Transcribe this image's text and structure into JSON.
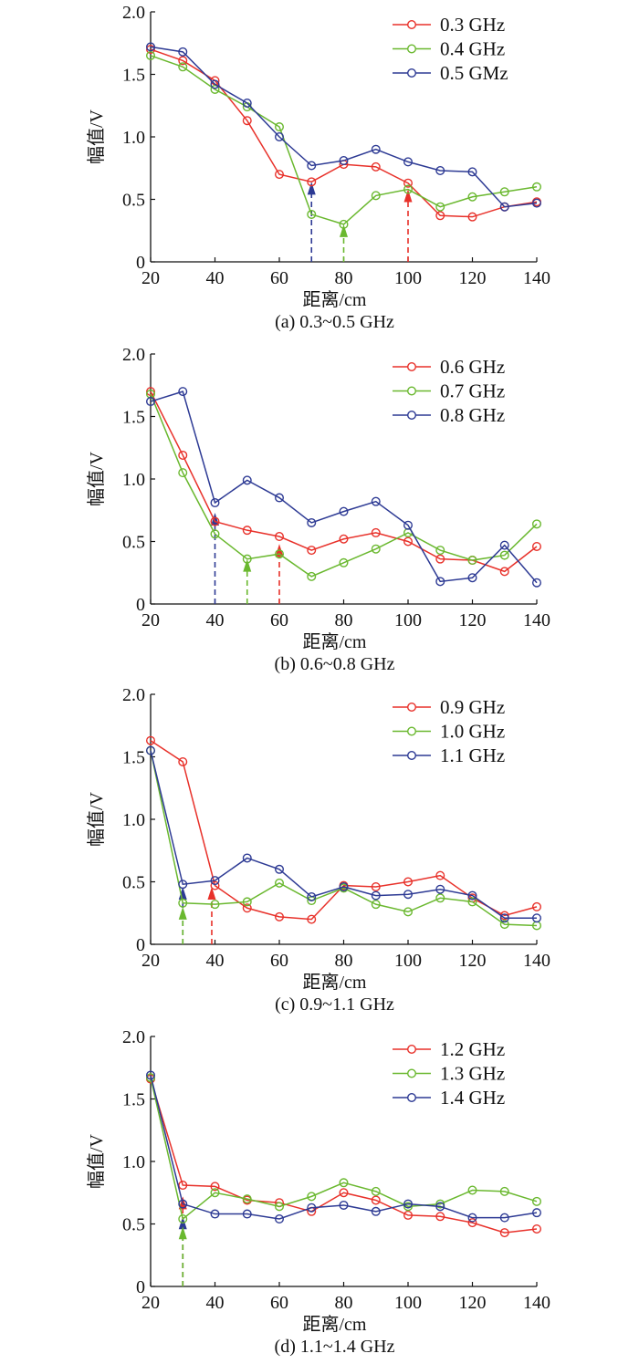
{
  "chart_data": [
    {
      "type": "line",
      "panel": "a",
      "caption": "(a)  0.3~0.5 GHz",
      "xlabel": "距离/cm",
      "ylabel": "幅值/V",
      "xlim": [
        20,
        140
      ],
      "ylim": [
        0,
        2.0
      ],
      "xticks": [
        20,
        40,
        60,
        80,
        100,
        120,
        140
      ],
      "yticks": [
        0,
        0.5,
        1.0,
        1.5,
        2.0
      ],
      "ytick_labels": [
        "0",
        "0.5",
        "1.0",
        "1.5",
        "2.0"
      ],
      "legend_position": "top-right",
      "grid": false,
      "x": [
        20,
        30,
        40,
        50,
        60,
        70,
        80,
        90,
        100,
        110,
        120,
        130,
        140
      ],
      "series": [
        {
          "name": "0.3 GHz",
          "color": "#e8312a",
          "values": [
            1.7,
            1.61,
            1.45,
            1.13,
            0.7,
            0.64,
            0.78,
            0.76,
            0.63,
            0.37,
            0.36,
            0.44,
            0.48
          ]
        },
        {
          "name": "0.4 GHz",
          "color": "#6ab82f",
          "values": [
            1.65,
            1.56,
            1.38,
            1.24,
            1.08,
            0.38,
            0.3,
            0.53,
            0.58,
            0.44,
            0.52,
            0.56,
            0.6
          ]
        },
        {
          "name": "0.5 GMz",
          "color": "#2d3a94",
          "values": [
            1.72,
            1.68,
            1.42,
            1.27,
            1.0,
            0.77,
            0.81,
            0.9,
            0.8,
            0.73,
            0.72,
            0.44,
            0.47
          ]
        }
      ],
      "annotations": [
        {
          "type": "arrow",
          "x": 70,
          "y": 0.64,
          "color": "#2d3a94"
        },
        {
          "type": "arrow",
          "x": 80,
          "y": 0.3,
          "color": "#6ab82f"
        },
        {
          "type": "arrow",
          "x": 100,
          "y": 0.58,
          "color": "#e8312a"
        }
      ]
    },
    {
      "type": "line",
      "panel": "b",
      "caption": "(b)  0.6~0.8 GHz",
      "xlabel": "距离/cm",
      "ylabel": "幅值/V",
      "xlim": [
        20,
        140
      ],
      "ylim": [
        0,
        2.0
      ],
      "xticks": [
        20,
        40,
        60,
        80,
        100,
        120,
        140
      ],
      "yticks": [
        0,
        0.5,
        1.0,
        1.5,
        2.0
      ],
      "ytick_labels": [
        "0",
        "0.5",
        "1.0",
        "1.5",
        "2.0"
      ],
      "legend_position": "top-right",
      "grid": false,
      "x": [
        20,
        30,
        40,
        50,
        60,
        70,
        80,
        90,
        100,
        110,
        120,
        130,
        140
      ],
      "series": [
        {
          "name": "0.6 GHz",
          "color": "#e8312a",
          "values": [
            1.7,
            1.19,
            0.66,
            0.59,
            0.54,
            0.43,
            0.52,
            0.57,
            0.5,
            0.36,
            0.35,
            0.26,
            0.46
          ]
        },
        {
          "name": "0.7 GHz",
          "color": "#6ab82f",
          "values": [
            1.68,
            1.05,
            0.56,
            0.36,
            0.4,
            0.22,
            0.33,
            0.44,
            0.57,
            0.43,
            0.35,
            0.39,
            0.64
          ]
        },
        {
          "name": "0.8 GHz",
          "color": "#2d3a94",
          "values": [
            1.62,
            1.7,
            0.81,
            0.99,
            0.85,
            0.65,
            0.74,
            0.82,
            0.63,
            0.18,
            0.21,
            0.47,
            0.17
          ]
        }
      ],
      "annotations": [
        {
          "type": "arrow",
          "x": 40,
          "y": 0.73,
          "color": "#2d3a94"
        },
        {
          "type": "arrow",
          "x": 50,
          "y": 0.36,
          "color": "#6ab82f"
        },
        {
          "type": "arrow",
          "x": 60,
          "y": 0.48,
          "color": "#e8312a"
        }
      ]
    },
    {
      "type": "line",
      "panel": "c",
      "caption": "(c)  0.9~1.1 GHz",
      "xlabel": "距离/cm",
      "ylabel": "幅值/V",
      "xlim": [
        20,
        140
      ],
      "ylim": [
        0,
        2.0
      ],
      "xticks": [
        20,
        40,
        60,
        80,
        100,
        120,
        140
      ],
      "yticks": [
        0,
        0.5,
        1.0,
        1.5,
        2.0
      ],
      "ytick_labels": [
        "0",
        "0.5",
        "1.0",
        "1.5",
        "2.0"
      ],
      "legend_position": "top-right",
      "grid": false,
      "x": [
        20,
        30,
        40,
        50,
        60,
        70,
        80,
        90,
        100,
        110,
        120,
        130,
        140
      ],
      "series": [
        {
          "name": "0.9 GHz",
          "color": "#e8312a",
          "values": [
            1.63,
            1.46,
            0.47,
            0.29,
            0.22,
            0.2,
            0.47,
            0.46,
            0.5,
            0.55,
            0.37,
            0.23,
            0.3
          ]
        },
        {
          "name": "1.0 GHz",
          "color": "#6ab82f",
          "values": [
            1.55,
            0.33,
            0.32,
            0.34,
            0.49,
            0.35,
            0.45,
            0.32,
            0.26,
            0.37,
            0.34,
            0.16,
            0.15
          ]
        },
        {
          "name": "1.1 GHz",
          "color": "#2d3a94",
          "values": [
            1.55,
            0.48,
            0.51,
            0.69,
            0.6,
            0.38,
            0.46,
            0.39,
            0.4,
            0.44,
            0.39,
            0.21,
            0.21
          ]
        }
      ],
      "annotations": [
        {
          "type": "arrow",
          "x": 30,
          "y": 0.46,
          "color": "#2d3a94"
        },
        {
          "type": "arrow",
          "x": 30,
          "y": 0.3,
          "color": "#6ab82f"
        },
        {
          "type": "arrow",
          "x": 39,
          "y": 0.46,
          "color": "#e8312a"
        }
      ]
    },
    {
      "type": "line",
      "panel": "d",
      "caption": "(d)  1.1~1.4 GHz",
      "xlabel": "距离/cm",
      "ylabel": "幅值/V",
      "xlim": [
        20,
        140
      ],
      "ylim": [
        0,
        2.0
      ],
      "xticks": [
        20,
        40,
        60,
        80,
        100,
        120,
        140
      ],
      "yticks": [
        0,
        0.5,
        1.0,
        1.5,
        2.0
      ],
      "ytick_labels": [
        "0",
        "0.5",
        "1.0",
        "1.5",
        "2.0"
      ],
      "legend_position": "top-right",
      "grid": false,
      "x": [
        20,
        30,
        40,
        50,
        60,
        70,
        80,
        90,
        100,
        110,
        120,
        130,
        140
      ],
      "series": [
        {
          "name": "1.2 GHz",
          "color": "#e8312a",
          "values": [
            1.66,
            0.81,
            0.8,
            0.69,
            0.67,
            0.6,
            0.75,
            0.69,
            0.57,
            0.56,
            0.51,
            0.43,
            0.46
          ]
        },
        {
          "name": "1.3 GHz",
          "color": "#6ab82f",
          "values": [
            1.67,
            0.54,
            0.75,
            0.7,
            0.64,
            0.72,
            0.83,
            0.76,
            0.64,
            0.66,
            0.77,
            0.76,
            0.68
          ]
        },
        {
          "name": "1.4 GHz",
          "color": "#2d3a94",
          "values": [
            1.69,
            0.66,
            0.58,
            0.58,
            0.54,
            0.63,
            0.65,
            0.6,
            0.66,
            0.64,
            0.55,
            0.55,
            0.59
          ]
        }
      ],
      "annotations": [
        {
          "type": "arrow",
          "x": 30,
          "y": 0.72,
          "color": "#e8312a"
        },
        {
          "type": "arrow",
          "x": 30,
          "y": 0.56,
          "color": "#2d3a94"
        },
        {
          "type": "arrow",
          "x": 30,
          "y": 0.48,
          "color": "#6ab82f"
        }
      ]
    }
  ]
}
